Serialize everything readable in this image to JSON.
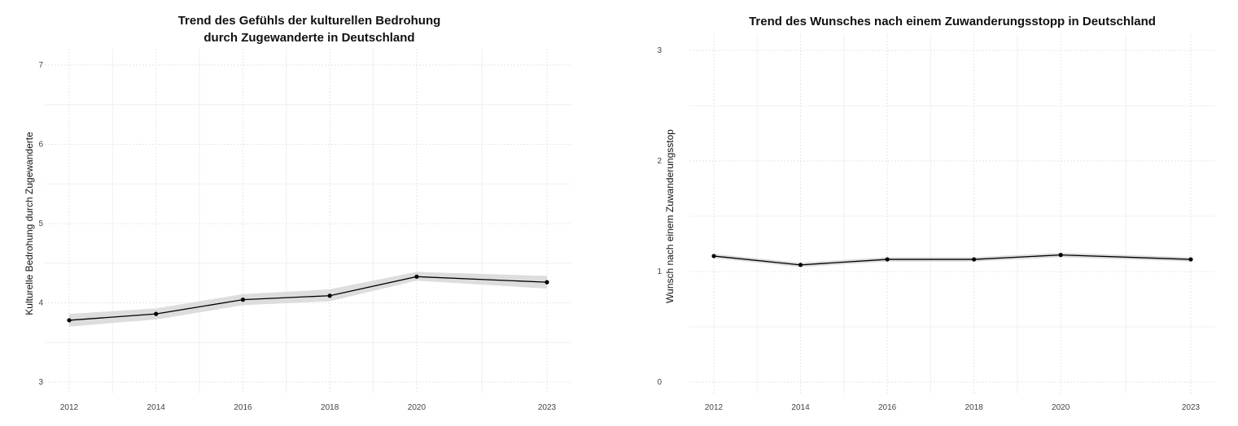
{
  "chart_data": [
    {
      "type": "line",
      "title_lines": [
        "Trend des Gefühls der kulturellen Bedrohung",
        "durch Zugewanderte in Deutschland"
      ],
      "xlabel": "",
      "ylabel": "Kulturelle Bedrohung durch Zugewanderte",
      "x": [
        2012,
        2014,
        2016,
        2018,
        2020,
        2023
      ],
      "values": [
        3.78,
        3.86,
        4.04,
        4.09,
        4.33,
        4.26
      ],
      "ci_lower": [
        3.7,
        3.79,
        3.97,
        4.02,
        4.28,
        4.18
      ],
      "ci_upper": [
        3.86,
        3.93,
        4.11,
        4.17,
        4.39,
        4.34
      ],
      "ylim": [
        3,
        7
      ],
      "xlim": [
        2012,
        2023
      ],
      "y_ticks": [
        "3",
        "4",
        "5",
        "6",
        "7"
      ],
      "x_ticks": [
        "2012",
        "2014",
        "2016",
        "2018",
        "2020",
        "2023"
      ],
      "grid": true,
      "colors": {
        "line": "#000000",
        "ribbon": "#d9d9d9",
        "grid": "#e6e6e6"
      }
    },
    {
      "type": "line",
      "title_lines": [
        "Trend des Wunsches nach einem Zuwanderungsstopp in Deutschland"
      ],
      "xlabel": "",
      "ylabel": "Wunsch nach einem Zuwanderungsstop",
      "x": [
        2012,
        2014,
        2016,
        2018,
        2020,
        2023
      ],
      "values": [
        1.14,
        1.06,
        1.11,
        1.11,
        1.15,
        1.11
      ],
      "ci_lower": [
        1.12,
        1.04,
        1.09,
        1.09,
        1.13,
        1.09
      ],
      "ci_upper": [
        1.16,
        1.08,
        1.13,
        1.13,
        1.17,
        1.13
      ],
      "ylim": [
        0,
        3
      ],
      "xlim": [
        2012,
        2023
      ],
      "y_ticks": [
        "0",
        "1",
        "2",
        "3"
      ],
      "x_ticks": [
        "2012",
        "2014",
        "2016",
        "2018",
        "2020",
        "2023"
      ],
      "grid": true,
      "colors": {
        "line": "#000000",
        "ribbon": "#d9d9d9",
        "grid": "#e6e6e6"
      }
    }
  ]
}
